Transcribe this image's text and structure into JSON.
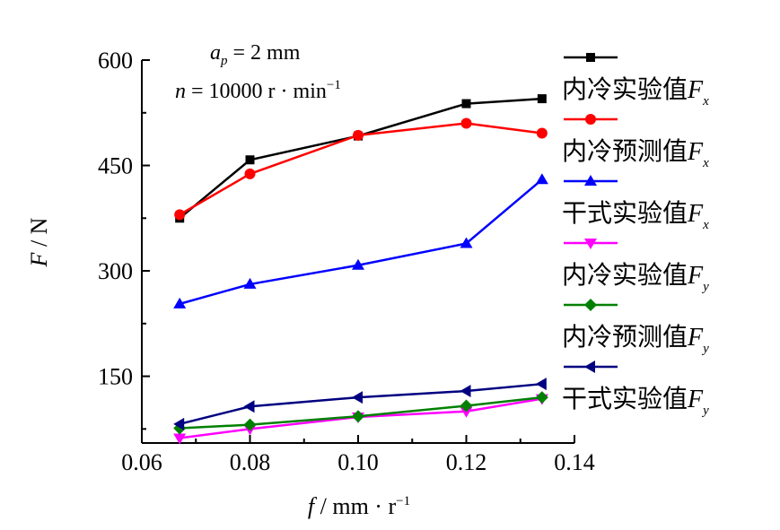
{
  "chart_data": {
    "type": "line",
    "annotation": {
      "line1": {
        "var": "a",
        "sub": "p",
        "rest": " = 2 mm"
      },
      "line2": {
        "var": "n",
        "rest": " = 10000 r · min",
        "sup": "−1"
      }
    },
    "xlabel": {
      "var": "f",
      "rest": " / mm · r",
      "sup": "−1"
    },
    "ylabel": {
      "var": "F",
      "rest": " / N"
    },
    "xlim": [
      0.06,
      0.14
    ],
    "ylim": [
      55,
      600
    ],
    "xticks": [
      "0.06",
      "0.08",
      "0.10",
      "0.12",
      "0.14"
    ],
    "xtick_values": [
      0.06,
      0.08,
      0.1,
      0.12,
      0.14
    ],
    "yticks": [
      "150",
      "300",
      "450",
      "600"
    ],
    "ytick_values": [
      150,
      300,
      450,
      600
    ],
    "x": [
      0.067,
      0.08,
      0.1,
      0.12,
      0.134
    ],
    "legend_position": "right",
    "grid": false,
    "series": [
      {
        "name": "内冷实验值",
        "sym": "F",
        "sub": "x",
        "color": "#000000",
        "marker": "square",
        "values": [
          375,
          458,
          492,
          538,
          545
        ]
      },
      {
        "name": "内冷预测值",
        "sym": "F",
        "sub": "x",
        "color": "#ff0000",
        "marker": "circle",
        "values": [
          380,
          438,
          493,
          510,
          496
        ]
      },
      {
        "name": "干式实验值",
        "sym": "F",
        "sub": "x",
        "color": "#0000ff",
        "marker": "triangle-up",
        "values": [
          253,
          281,
          308,
          339,
          430
        ]
      },
      {
        "name": "内冷实验值",
        "sym": "F",
        "sub": "y",
        "color": "#ff00ff",
        "marker": "triangle-down",
        "values": [
          62,
          75,
          92,
          100,
          118
        ]
      },
      {
        "name": "内冷预测值",
        "sym": "F",
        "sub": "y",
        "color": "#008000",
        "marker": "diamond",
        "values": [
          76,
          81,
          93,
          108,
          120
        ]
      },
      {
        "name": "干式实验值",
        "sym": "F",
        "sub": "y",
        "color": "#000080",
        "marker": "triangle-left",
        "values": [
          82,
          107,
          120,
          129,
          139
        ]
      }
    ]
  }
}
